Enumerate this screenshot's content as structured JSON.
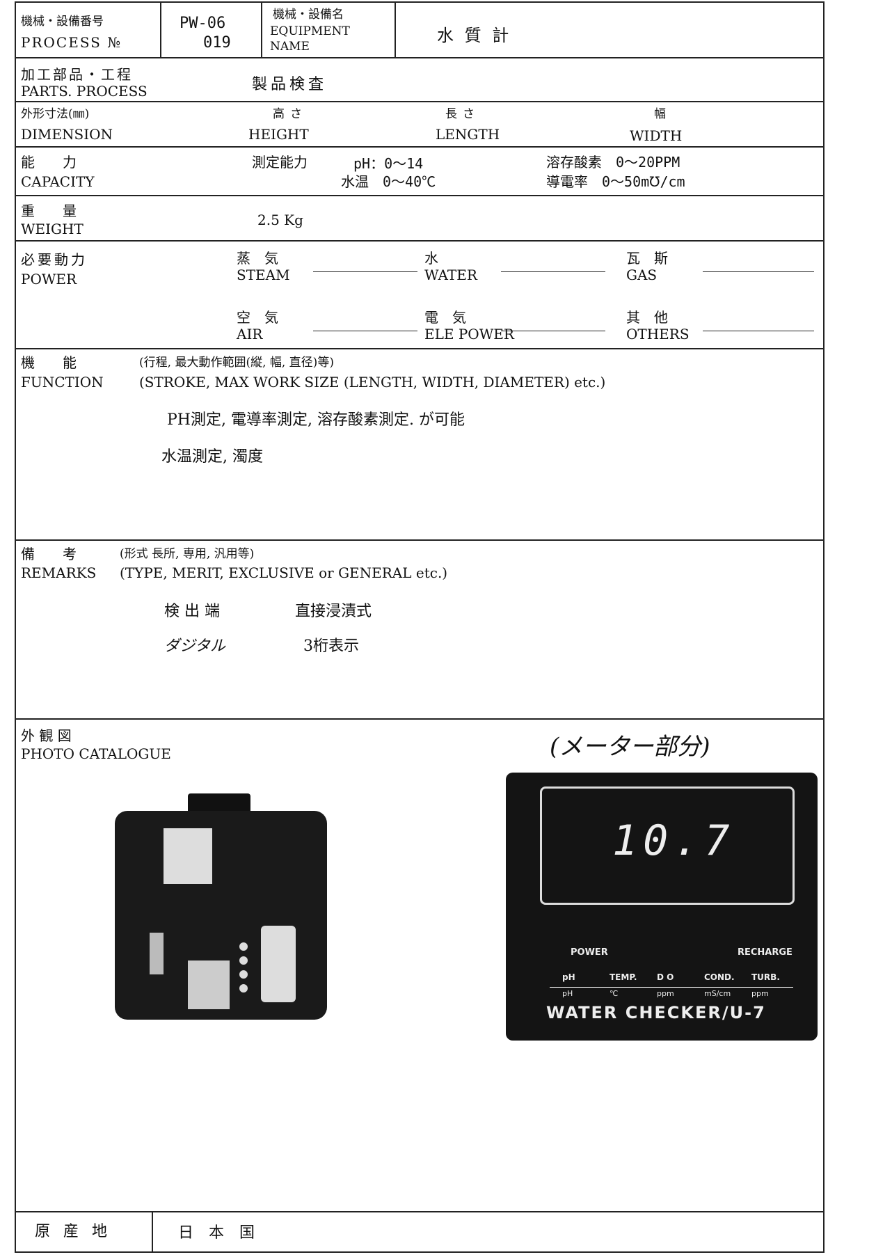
{
  "header": {
    "process_no_label": "機械・設備番号",
    "process_no_label_en": "PROCESS №",
    "process_no": "PW-06",
    "process_no_sub": "019",
    "equipment_name_label": "機械・設備名",
    "equipment_name_label_en": "EQUIPMENT",
    "equipment_name_label_en2": "NAME",
    "equipment_name": "水 質 計"
  },
  "parts_process": {
    "label": "加工部品・工程",
    "label_en": "PARTS. PROCESS",
    "value": "製品検査"
  },
  "dimension": {
    "label": "外形寸法(㎜)",
    "label_en": "DIMENSION",
    "height": "高さ",
    "height_en": "HEIGHT",
    "length": "長さ",
    "length_en": "LENGTH",
    "width": "幅",
    "width_en": "WIDTH"
  },
  "capacity": {
    "label": "能　　力",
    "label_en": "CAPACITY",
    "heading": "測定能力",
    "items": [
      "pH：0～14",
      "溶存酸素　0～20PPM",
      "水温　0～40℃",
      "導電率　0～50m℧/cm"
    ]
  },
  "weight": {
    "label": "重　　量",
    "label_en": "WEIGHT",
    "value": "2.5 Kg"
  },
  "power": {
    "label": "必要動力",
    "label_en": "POWER",
    "items": [
      {
        "label": "蒸　気",
        "label_en": "STEAM"
      },
      {
        "label": "水",
        "label_en": "WATER"
      },
      {
        "label": "瓦　斯",
        "label_en": "GAS"
      },
      {
        "label": "空　気",
        "label_en": "AIR"
      },
      {
        "label": "電　気",
        "label_en": "ELE POWER"
      },
      {
        "label": "其　他",
        "label_en": "OTHERS"
      }
    ]
  },
  "function": {
    "label": "機　　能",
    "label_note": "(行程, 最大動作範囲(縦, 幅, 直径)等)",
    "label_en": "FUNCTION",
    "label_note_en": "(STROKE, MAX WORK SIZE (LENGTH, WIDTH, DIAMETER) etc.)",
    "lines": [
      "PH測定, 電導率測定, 溶存酸素測定. が可能",
      "水温測定, 濁度"
    ]
  },
  "remarks": {
    "label": "備　　考",
    "label_note": "(形式 長所, 専用, 汎用等)",
    "label_en": "REMARKS",
    "label_note_en": "(TYPE, MERIT, EXCLUSIVE or GENERAL etc.)",
    "items": [
      [
        "検 出 端",
        "直接浸漬式"
      ],
      [
        "ダジタル",
        "3桁表示"
      ]
    ]
  },
  "photo": {
    "label": "外 観 図",
    "label_en": "PHOTO CATALOGUE",
    "note": "(メーター部分)",
    "display": "10.7",
    "indicators": [
      "POWER",
      "RECHARGE"
    ],
    "columns": [
      [
        "pH",
        "pH"
      ],
      [
        "TEMP.",
        "℃"
      ],
      [
        "D O",
        "ppm"
      ],
      [
        "COND.",
        "mS/cm"
      ],
      [
        "TURB.",
        "ppm"
      ]
    ],
    "model": "WATER CHECKER/U-7"
  },
  "origin": {
    "label": "原 産 地",
    "value": "日　本　国"
  }
}
